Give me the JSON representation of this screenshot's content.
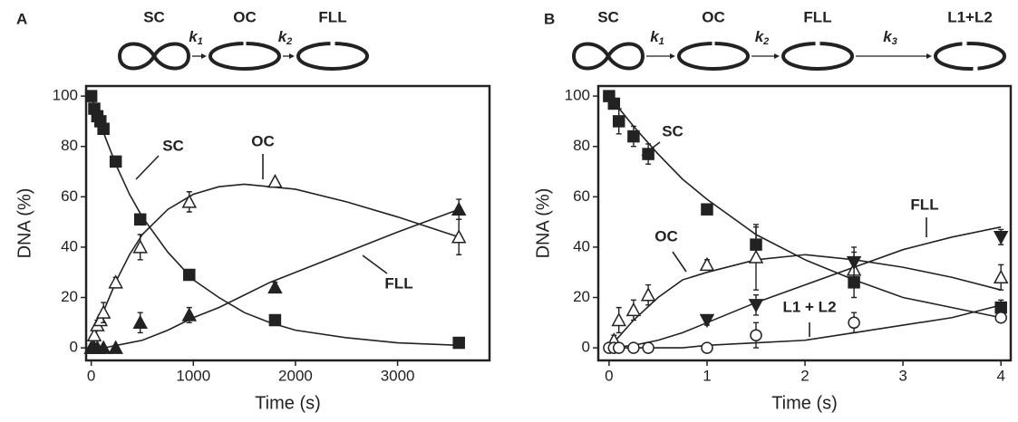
{
  "chart_data": [
    {
      "type": "scatter",
      "panel": "A",
      "xlabel": "Time (s)",
      "ylabel": "DNA (%)",
      "scheme": {
        "species": [
          "SC",
          "OC",
          "FLL"
        ],
        "rates": [
          {
            "symbol": "k",
            "index": "1"
          },
          {
            "symbol": "k",
            "index": "2"
          }
        ]
      },
      "xlim": [
        -50,
        3900
      ],
      "xticks": [
        0,
        1000,
        2000,
        3000
      ],
      "ylim": [
        -5,
        104
      ],
      "yticks": [
        0,
        20,
        40,
        60,
        80,
        100
      ],
      "fit_x": [
        0,
        125,
        250,
        375,
        500,
        750,
        1000,
        1250,
        1500,
        1750,
        2000,
        2500,
        3000,
        3600
      ],
      "series": [
        {
          "name": "SC",
          "color": "#222222",
          "marker": "square-filled",
          "x": [
            0,
            30,
            60,
            90,
            120,
            240,
            480,
            960,
            1800,
            3600
          ],
          "values": [
            100,
            95,
            92,
            90,
            87,
            74,
            51,
            29,
            11,
            2
          ],
          "errors": [
            null,
            null,
            null,
            null,
            2,
            2,
            2,
            null,
            null,
            2
          ],
          "fit_values": [
            100,
            85,
            72,
            61,
            52,
            38,
            27,
            20,
            14,
            10,
            7,
            4,
            2,
            1
          ]
        },
        {
          "name": "OC",
          "color": "#222222",
          "marker": "triangle-open",
          "x": [
            30,
            60,
            90,
            120,
            240,
            480,
            960,
            1800,
            3600
          ],
          "values": [
            5,
            9,
            11,
            14,
            26,
            40,
            58,
            66,
            44
          ],
          "errors": [
            null,
            2,
            2,
            4,
            2,
            5,
            4,
            null,
            7
          ],
          "fit_values": [
            0,
            15,
            27,
            37,
            45,
            55,
            61,
            64,
            65,
            64,
            63,
            58,
            52,
            44
          ]
        },
        {
          "name": "FLL",
          "color": "#222222",
          "marker": "triangle-filled",
          "x": [
            0,
            30,
            60,
            120,
            240,
            480,
            960,
            1800,
            3600
          ],
          "values": [
            0,
            0,
            0,
            0,
            0,
            10,
            13,
            24,
            55
          ],
          "errors": [
            null,
            null,
            null,
            null,
            null,
            4,
            3,
            2,
            4
          ],
          "fit_values": [
            0,
            0,
            1,
            2,
            3,
            7,
            12,
            16,
            21,
            26,
            30,
            38,
            46,
            55
          ]
        }
      ]
    },
    {
      "type": "scatter",
      "panel": "B",
      "xlabel": "Time (s)",
      "ylabel": "DNA (%)",
      "scheme": {
        "species": [
          "SC",
          "OC",
          "FLL",
          "L1+L2"
        ],
        "rates": [
          {
            "symbol": "k",
            "index": "1"
          },
          {
            "symbol": "k",
            "index": "2"
          },
          {
            "symbol": "k",
            "index": "3"
          }
        ]
      },
      "xlim": [
        -0.11,
        4.1
      ],
      "xticks": [
        0,
        1,
        2,
        3,
        4
      ],
      "ylim": [
        -5,
        104
      ],
      "yticks": [
        0,
        20,
        40,
        60,
        80,
        100
      ],
      "fit_x": [
        0,
        0.25,
        0.5,
        0.75,
        1,
        1.5,
        2,
        2.5,
        3,
        3.5,
        4
      ],
      "series": [
        {
          "name": "SC",
          "color": "#222222",
          "marker": "square-filled",
          "x": [
            0,
            0.05,
            0.1,
            0.25,
            0.4,
            1,
            1.5,
            2.5,
            4
          ],
          "values": [
            100,
            97,
            90,
            84,
            77,
            55,
            41,
            26,
            16
          ],
          "errors": [
            null,
            null,
            5,
            4,
            4,
            2,
            7,
            6,
            3
          ],
          "fit_values": [
            100,
            88,
            77,
            67,
            59,
            45,
            35,
            27,
            20,
            16,
            12
          ]
        },
        {
          "name": "OC",
          "color": "#222222",
          "marker": "triangle-open",
          "x": [
            0.05,
            0.1,
            0.25,
            0.4,
            1,
            1.5,
            2.5,
            4
          ],
          "values": [
            3,
            11,
            15,
            21,
            33,
            36,
            31,
            28
          ],
          "errors": [
            2,
            5,
            4,
            4,
            2,
            13,
            7,
            5
          ],
          "fit_values": [
            0,
            11,
            20,
            27,
            30,
            35,
            37,
            35,
            32,
            28,
            23
          ]
        },
        {
          "name": "FLL",
          "color": "#222222",
          "marker": "triangle-down-filled",
          "x": [
            1,
            1.5,
            2.5,
            4
          ],
          "values": [
            11,
            17,
            34,
            44
          ],
          "errors": [
            2,
            4,
            6,
            3
          ],
          "fit_values": [
            0,
            1,
            3,
            6,
            10,
            18,
            25,
            32,
            39,
            44,
            48
          ]
        },
        {
          "name": "L1 + L2",
          "color": "#222222",
          "marker": "circle-open",
          "x": [
            0,
            0.05,
            0.1,
            0.25,
            0.4,
            1,
            1.5,
            2.5,
            4
          ],
          "values": [
            0,
            0,
            0,
            0,
            0,
            0,
            5,
            10,
            12
          ],
          "errors": [
            null,
            null,
            null,
            null,
            null,
            null,
            5,
            4,
            2
          ],
          "fit_values": [
            0,
            0,
            0,
            0,
            1,
            2,
            3,
            6,
            9,
            12,
            17
          ]
        }
      ]
    }
  ]
}
